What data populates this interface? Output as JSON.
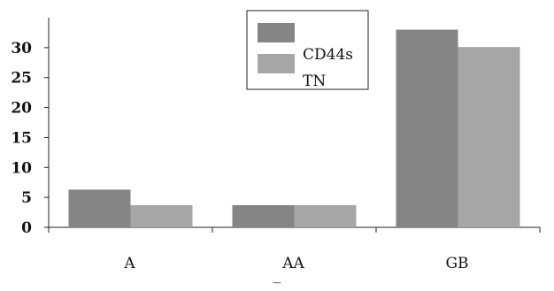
{
  "chart_data": {
    "type": "bar",
    "categories": [
      "A",
      "AA",
      "GB"
    ],
    "series": [
      {
        "name": "CD44s",
        "values": [
          6.3,
          3.7,
          33.0
        ],
        "color": "#858585"
      },
      {
        "name": "TN",
        "values": [
          3.7,
          3.7,
          30.1
        ],
        "color": "#a6a6a6"
      }
    ],
    "title": "",
    "xlabel": "",
    "ylabel": "",
    "ylim": [
      0,
      35
    ],
    "yticks": [
      0,
      5,
      10,
      15,
      20,
      25,
      30
    ],
    "ytick_labels": [
      "0",
      "5",
      "10",
      "15",
      "20",
      "25",
      "30"
    ],
    "grid": false,
    "legend_position": "top-center",
    "footer_mark": "_"
  }
}
